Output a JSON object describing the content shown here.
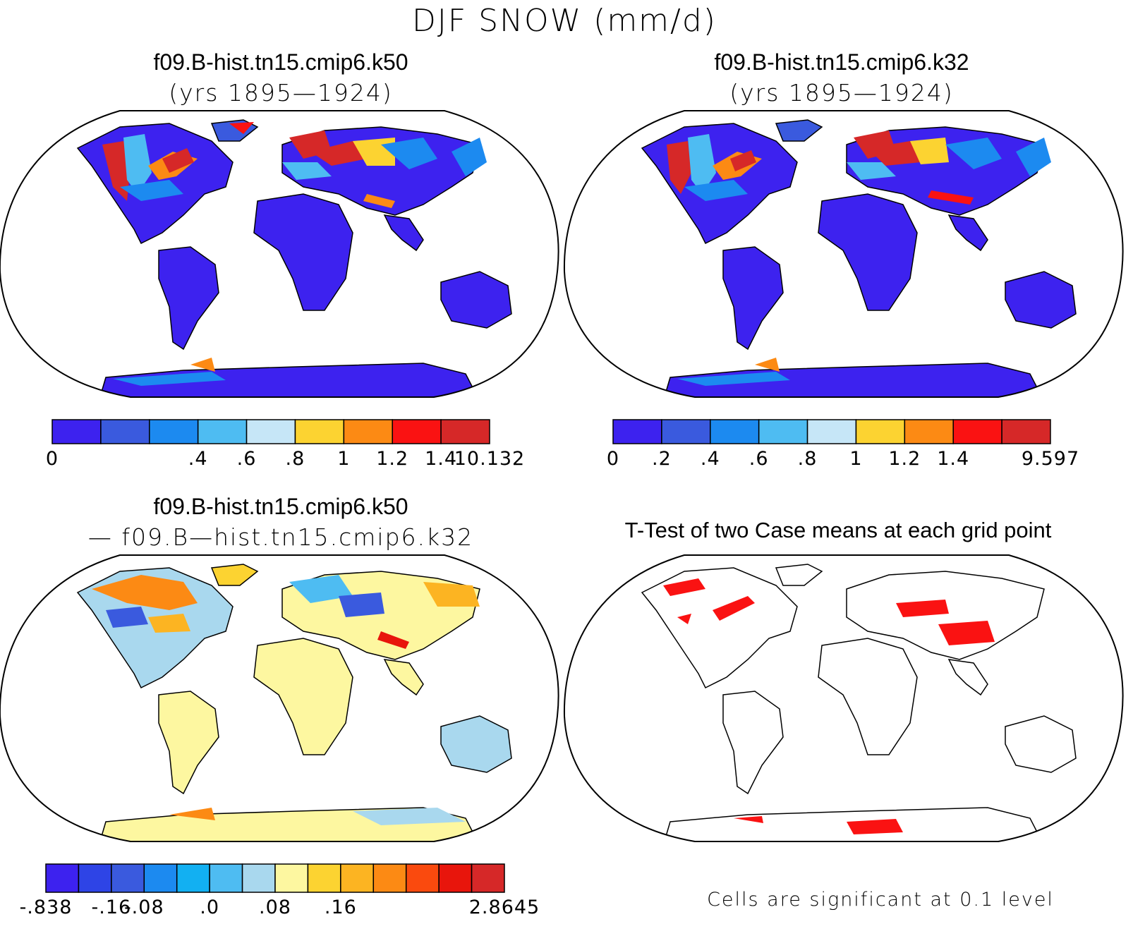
{
  "figure": {
    "title": "DJF SNOW (mm/d)"
  },
  "panels": [
    {
      "id": "k50",
      "title_line1": "f09.B-hist.tn15.cmip6.k50",
      "title_line2": "(yrs 1895—1924)",
      "colorbar": {
        "colors": [
          "#3d22ef",
          "#3a5ade",
          "#1c8af0",
          "#4ebcf2",
          "#c6e6f7",
          "#fcd331",
          "#fc8a14",
          "#fa1212",
          "#d62828"
        ],
        "tick_labels": [
          "0",
          "",
          "",
          ".4",
          ".6",
          ".8",
          "1",
          "1.2",
          "1.4",
          "10.132"
        ]
      }
    },
    {
      "id": "k32",
      "title_line1": "f09.B-hist.tn15.cmip6.k32",
      "title_line2": "(yrs 1895—1924)",
      "colorbar": {
        "colors": [
          "#3d22ef",
          "#3a5ade",
          "#1c8af0",
          "#4ebcf2",
          "#c6e6f7",
          "#fcd331",
          "#fc8a14",
          "#fa1212",
          "#d62828"
        ],
        "tick_labels": [
          "0",
          ".2",
          ".4",
          ".6",
          ".8",
          "1",
          "1.2",
          "1.4",
          "",
          "9.597"
        ]
      }
    },
    {
      "id": "diff",
      "title_line1": "f09.B-hist.tn15.cmip6.k50",
      "title_line2": "— f09.B—hist.tn15.cmip6.k32",
      "colorbar": {
        "colors": [
          "#3d22ef",
          "#2e44e6",
          "#3a5ade",
          "#1c8af0",
          "#12b0f2",
          "#4ebcf2",
          "#a9d8ee",
          "#fdf7a0",
          "#fcd331",
          "#fcb422",
          "#fc8a14",
          "#fa4a0e",
          "#e8150c",
          "#d62828"
        ],
        "tick_labels": [
          "-.838",
          "",
          "-.16",
          "-.08",
          "",
          ".0",
          "",
          ".08",
          "",
          ".16",
          "",
          "",
          "",
          "",
          "2.8645"
        ]
      }
    },
    {
      "id": "ttest",
      "title_line1": "T-Test of two Case means at each grid point",
      "footer": "Cells are significant at 0.1 level"
    }
  ]
}
